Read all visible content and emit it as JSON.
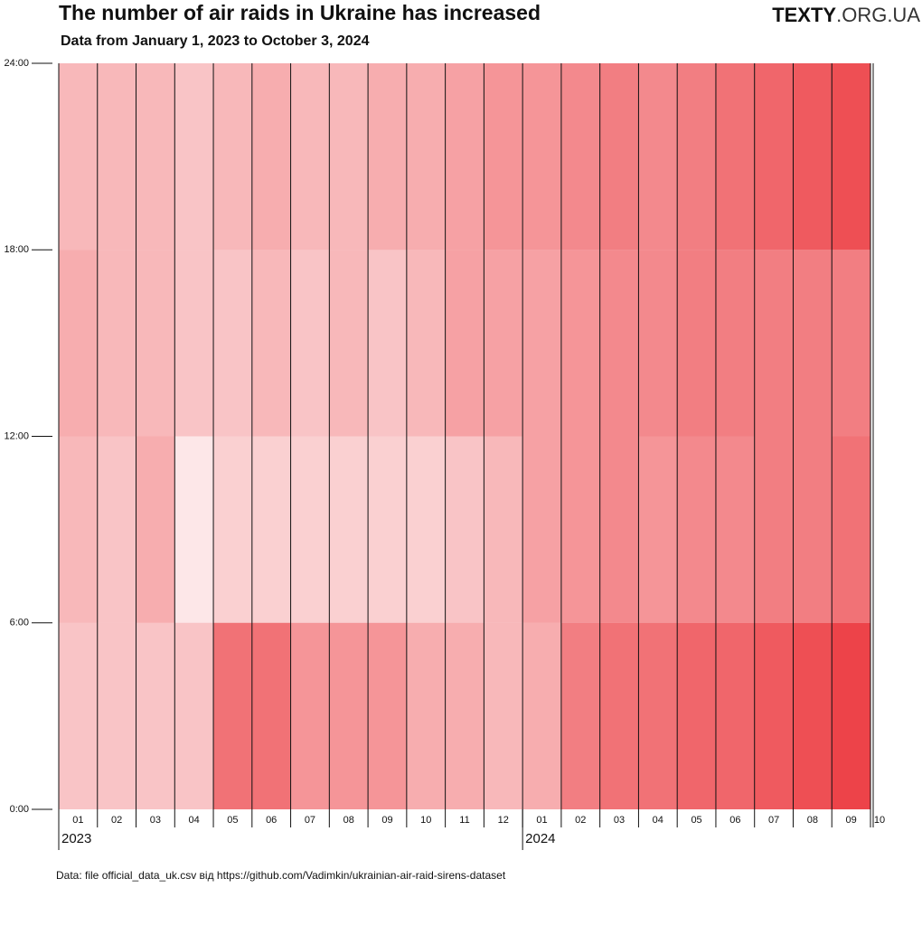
{
  "chart_data": {
    "type": "heatmap",
    "title": "The number of air raids in Ukraine has increased",
    "subtitle": "Data from January 1, 2023 to October 3, 2024",
    "logo": {
      "bold": "TEXTY",
      "light": ".ORG.UA"
    },
    "source": "Data: file official_data_uk.csv від https://github.com/Vadimkin/ukrainian-air-raid-sirens-dataset",
    "categories": [
      "01",
      "02",
      "03",
      "04",
      "05",
      "06",
      "07",
      "08",
      "09",
      "10",
      "11",
      "12",
      "01",
      "02",
      "03",
      "04",
      "05",
      "06",
      "07",
      "08",
      "09"
    ],
    "x_end_label": "10",
    "years": [
      "2023",
      "2024"
    ],
    "ylim": [
      0,
      24
    ],
    "yticks": [
      {
        "value": 0,
        "label": "0:00"
      },
      {
        "value": 6,
        "label": "6:00"
      },
      {
        "value": 12,
        "label": "12:00"
      },
      {
        "value": 18,
        "label": "18:00"
      },
      {
        "value": 24,
        "label": "24:00"
      }
    ],
    "color": "#e8141b",
    "values": [
      [
        0.25,
        0.3,
        0.35,
        0.3
      ],
      [
        0.25,
        0.25,
        0.3,
        0.3
      ],
      [
        0.25,
        0.35,
        0.3,
        0.3
      ],
      [
        0.25,
        0.1,
        0.25,
        0.25
      ],
      [
        0.6,
        0.2,
        0.25,
        0.3
      ],
      [
        0.6,
        0.2,
        0.3,
        0.35
      ],
      [
        0.45,
        0.2,
        0.25,
        0.3
      ],
      [
        0.45,
        0.2,
        0.3,
        0.3
      ],
      [
        0.45,
        0.2,
        0.25,
        0.35
      ],
      [
        0.35,
        0.2,
        0.3,
        0.35
      ],
      [
        0.35,
        0.25,
        0.4,
        0.4
      ],
      [
        0.3,
        0.3,
        0.4,
        0.45
      ],
      [
        0.35,
        0.4,
        0.4,
        0.45
      ],
      [
        0.55,
        0.45,
        0.45,
        0.5
      ],
      [
        0.6,
        0.5,
        0.5,
        0.55
      ],
      [
        0.6,
        0.45,
        0.5,
        0.5
      ],
      [
        0.65,
        0.5,
        0.55,
        0.55
      ],
      [
        0.65,
        0.5,
        0.55,
        0.6
      ],
      [
        0.7,
        0.55,
        0.55,
        0.65
      ],
      [
        0.75,
        0.55,
        0.55,
        0.7
      ],
      [
        0.8,
        0.6,
        0.55,
        0.75
      ]
    ]
  }
}
